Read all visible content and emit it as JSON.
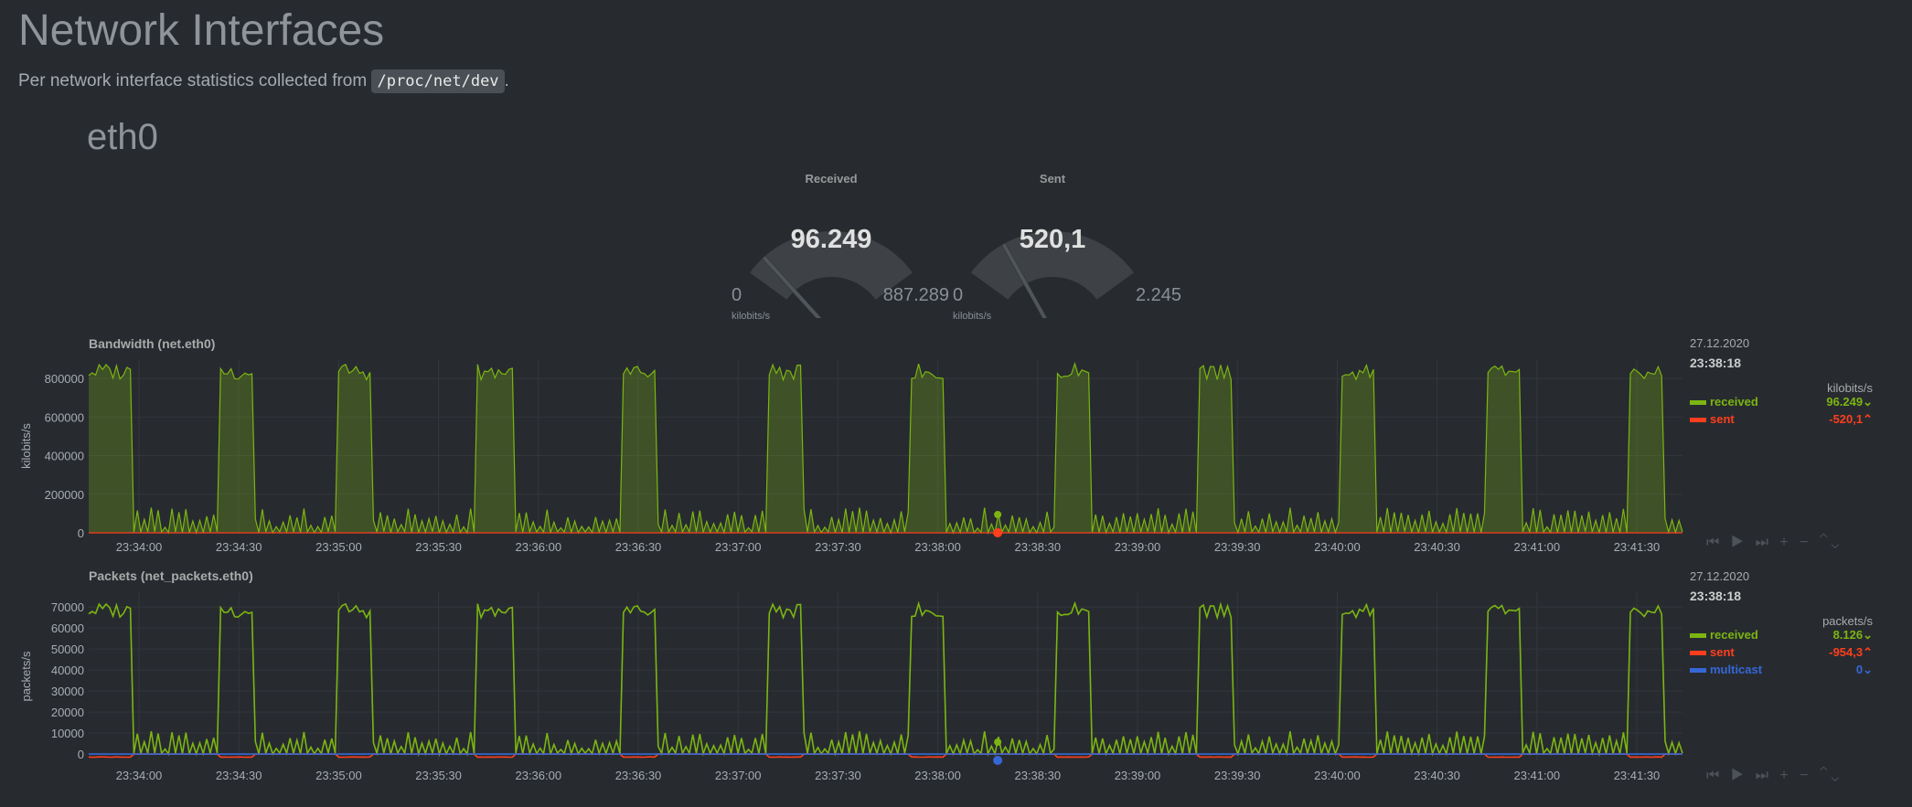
{
  "page": {
    "title": "Network Interfaces",
    "subtitle_prefix": "Per network interface statistics collected from",
    "subtitle_code": "/proc/net/dev",
    "subtitle_suffix": ".",
    "interface": "eth0"
  },
  "gauges": [
    {
      "label": "Received",
      "value": "96.249",
      "min": "0",
      "max": "887.289",
      "unit": "kilobits/s",
      "fraction": 0.11
    },
    {
      "label": "Sent",
      "value": "520,1",
      "min": "0",
      "max": "2.245",
      "unit": "kilobits/s",
      "fraction": 0.23
    }
  ],
  "colors": {
    "received": "#7cb511",
    "sent": "#ff3e1d",
    "multicast": "#3567d6",
    "grid": "#33373c",
    "axis": "#a8adb3"
  },
  "charts": [
    {
      "id": "bandwidth",
      "title": "Bandwidth (net.eth0)",
      "ylabel": "kilobits/s",
      "legend": {
        "date": "27.12.2020",
        "time": "23:38:18",
        "units": "kilobits/s",
        "rows": [
          {
            "name": "received",
            "value": "96.249",
            "arrow": "⌄",
            "color": "#7cb511"
          },
          {
            "name": "sent",
            "value": "-520,1",
            "arrow": "⌃",
            "color": "#ff3e1d"
          }
        ]
      },
      "controls": "⏮ ▶ ⏭ + −   ⌃⌄"
    },
    {
      "id": "packets",
      "title": "Packets (net_packets.eth0)",
      "ylabel": "packets/s",
      "legend": {
        "date": "27.12.2020",
        "time": "23:38:18",
        "units": "packets/s",
        "rows": [
          {
            "name": "received",
            "value": "8.126",
            "arrow": "⌄",
            "color": "#7cb511"
          },
          {
            "name": "sent",
            "value": "-954,3",
            "arrow": "⌃",
            "color": "#ff3e1d"
          },
          {
            "name": "multicast",
            "value": "0",
            "arrow": "⌄",
            "color": "#3567d6"
          }
        ]
      },
      "controls": "⏮ ▶ ⏭ + −   ⌃⌄"
    }
  ],
  "chart_data": [
    {
      "type": "area",
      "title": "Bandwidth (net.eth0)",
      "ylabel": "kilobits/s",
      "x": [
        "23:34:00",
        "23:34:30",
        "23:35:00",
        "23:35:30",
        "23:36:00",
        "23:36:30",
        "23:37:00",
        "23:37:30",
        "23:38:00",
        "23:38:30",
        "23:39:00",
        "23:39:30",
        "23:40:00",
        "23:40:30",
        "23:41:00",
        "23:41:30"
      ],
      "y_ticks": [
        "0",
        "200000",
        "400000",
        "600000",
        "800000"
      ],
      "ylim": [
        0,
        900000
      ],
      "grid": true,
      "bursts": [
        [
          -2,
          12
        ],
        [
          38,
          47
        ],
        [
          72,
          81
        ],
        [
          112,
          122
        ],
        [
          154,
          163
        ],
        [
          196,
          205
        ],
        [
          237,
          246
        ],
        [
          279,
          288
        ],
        [
          320,
          329
        ],
        [
          361,
          370
        ],
        [
          403,
          412
        ],
        [
          444,
          453
        ]
      ],
      "series": [
        {
          "name": "received",
          "peak": 880000,
          "baseline": 120000
        },
        {
          "name": "sent",
          "peak": 0,
          "baseline": 0
        }
      ]
    },
    {
      "type": "line",
      "title": "Packets (net_packets.eth0)",
      "ylabel": "packets/s",
      "x": [
        "23:34:00",
        "23:34:30",
        "23:35:00",
        "23:35:30",
        "23:36:00",
        "23:36:30",
        "23:37:00",
        "23:37:30",
        "23:38:00",
        "23:38:30",
        "23:39:00",
        "23:39:30",
        "23:40:00",
        "23:40:30",
        "23:41:00",
        "23:41:30"
      ],
      "y_ticks": [
        "0",
        "10000",
        "20000",
        "30000",
        "40000",
        "50000",
        "60000",
        "70000"
      ],
      "ylim": [
        -3000,
        77000
      ],
      "grid": true,
      "bursts": [
        [
          -2,
          12
        ],
        [
          38,
          47
        ],
        [
          72,
          81
        ],
        [
          112,
          122
        ],
        [
          154,
          163
        ],
        [
          196,
          205
        ],
        [
          237,
          246
        ],
        [
          279,
          288
        ],
        [
          320,
          329
        ],
        [
          361,
          370
        ],
        [
          403,
          412
        ],
        [
          444,
          453
        ]
      ],
      "series": [
        {
          "name": "received",
          "peak": 72000,
          "baseline": 10000
        },
        {
          "name": "sent",
          "peak": -1500,
          "baseline": 0
        },
        {
          "name": "multicast",
          "peak": 0,
          "baseline": 0
        }
      ]
    }
  ]
}
